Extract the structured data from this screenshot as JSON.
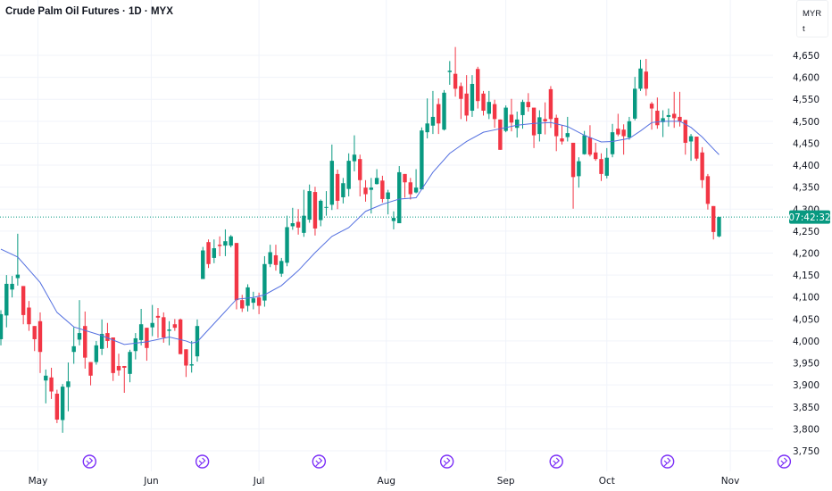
{
  "header": {
    "title": "Crude Palm Oil Futures · 1D · MYX"
  },
  "currency_box": {
    "currency": "MYR",
    "unit": "t"
  },
  "countdown": "07:42:32",
  "colors": {
    "up": "#089981",
    "down": "#F23645",
    "ma": "#5470e0",
    "grid": "#f0f3fa",
    "countdown_bg": "#089981"
  },
  "chart_data": {
    "type": "candlestick",
    "title": "Crude Palm Oil Futures · 1D · MYX",
    "ylim": [
      3730,
      4690
    ],
    "y_ticks": [
      {
        "v": 4650,
        "label": "4,650"
      },
      {
        "v": 4600,
        "label": "4,600"
      },
      {
        "v": 4550,
        "label": "4,550"
      },
      {
        "v": 4500,
        "label": "4,500"
      },
      {
        "v": 4450,
        "label": "4,450"
      },
      {
        "v": 4400,
        "label": "4,400"
      },
      {
        "v": 4350,
        "label": "4,350"
      },
      {
        "v": 4300,
        "label": "4,300"
      },
      {
        "v": 4250,
        "label": "4,250"
      },
      {
        "v": 4200,
        "label": "4,200"
      },
      {
        "v": 4150,
        "label": "4,150"
      },
      {
        "v": 4100,
        "label": "4,100"
      },
      {
        "v": 4050,
        "label": "4,050"
      },
      {
        "v": 4000,
        "label": "4,000"
      },
      {
        "v": 3950,
        "label": "3,950"
      },
      {
        "v": 3900,
        "label": "3,900"
      },
      {
        "v": 3850,
        "label": "3,850"
      },
      {
        "v": 3800,
        "label": "3,800"
      },
      {
        "v": 3750,
        "label": "3,750"
      }
    ],
    "x_ticks": [
      {
        "i": 6.6,
        "label": "May"
      },
      {
        "i": 26.8,
        "label": "Jun"
      },
      {
        "i": 46,
        "label": "Jul"
      },
      {
        "i": 68.7,
        "label": "Aug"
      },
      {
        "i": 90,
        "label": "Sep"
      },
      {
        "i": 108,
        "label": "Oct"
      },
      {
        "i": 130,
        "label": "Nov"
      }
    ],
    "events": [
      15.8,
      35.9,
      56.7,
      79.5,
      99,
      118.8,
      139.6
    ],
    "last_price": 4282,
    "ohlc": [
      [
        4004,
        4070,
        3990,
        4061
      ],
      [
        4058,
        4150,
        4031,
        4130
      ],
      [
        4117,
        4148,
        4099,
        4130
      ],
      [
        4143,
        4244,
        4126,
        4151
      ],
      [
        4125,
        4125,
        4038,
        4059
      ],
      [
        4076,
        4091,
        4023,
        4038
      ],
      [
        4034,
        4034,
        3977,
        4004
      ],
      [
        4045,
        4065,
        3927,
        3975
      ],
      [
        3910,
        3935,
        3858,
        3921
      ],
      [
        3917,
        3939,
        3868,
        3885
      ],
      [
        3880,
        3889,
        3813,
        3821
      ],
      [
        3820,
        3902,
        3791,
        3896
      ],
      [
        3895,
        3951,
        3840,
        3908
      ],
      [
        3975,
        4031,
        3948,
        3988
      ],
      [
        4003,
        4093,
        3990,
        4018
      ],
      [
        4034,
        4067,
        3937,
        3962
      ],
      [
        3952,
        3952,
        3899,
        3921
      ],
      [
        3952,
        4000,
        3946,
        3990
      ],
      [
        3982,
        4049,
        3968,
        4016
      ],
      [
        4018,
        4041,
        3984,
        4000
      ],
      [
        4008,
        4008,
        3909,
        3927
      ],
      [
        3943,
        3971,
        3921,
        3933
      ],
      [
        3943,
        3943,
        3882,
        3939
      ],
      [
        3925,
        3980,
        3906,
        3975
      ],
      [
        3977,
        4018,
        3958,
        4006
      ],
      [
        4002,
        4073,
        3990,
        4038
      ],
      [
        4030,
        4030,
        3955,
        3984
      ],
      [
        4031,
        4082,
        4011,
        4041
      ],
      [
        4057,
        4075,
        4007,
        4053
      ],
      [
        4054,
        4065,
        3996,
        4008
      ],
      [
        4023,
        4045,
        3990,
        4026
      ],
      [
        4038,
        4050,
        4023,
        4030
      ],
      [
        4049,
        4051,
        3970,
        3970
      ],
      [
        3981,
        3981,
        3918,
        3944
      ],
      [
        3944,
        4000,
        3928,
        3947
      ],
      [
        3965,
        4049,
        3953,
        4034
      ],
      [
        4141,
        4214,
        4141,
        4206
      ],
      [
        4225,
        4231,
        4166,
        4175
      ],
      [
        4189,
        4231,
        4177,
        4211
      ],
      [
        4219,
        4238,
        4193,
        4216
      ],
      [
        4217,
        4254,
        4193,
        4227
      ],
      [
        4217,
        4241,
        4213,
        4238
      ],
      [
        4223,
        4223,
        4072,
        4093
      ],
      [
        4093,
        4105,
        4066,
        4074
      ],
      [
        4080,
        4129,
        4067,
        4122
      ],
      [
        4087,
        4112,
        4072,
        4097
      ],
      [
        4099,
        4110,
        4061,
        4080
      ],
      [
        4092,
        4193,
        4078,
        4175
      ],
      [
        4175,
        4219,
        4168,
        4202
      ],
      [
        4195,
        4219,
        4160,
        4173
      ],
      [
        4153,
        4189,
        4146,
        4182
      ],
      [
        4178,
        4285,
        4170,
        4259
      ],
      [
        4261,
        4303,
        4253,
        4268
      ],
      [
        4271,
        4300,
        4242,
        4258
      ],
      [
        4246,
        4344,
        4237,
        4285
      ],
      [
        4276,
        4356,
        4269,
        4341
      ],
      [
        4339,
        4351,
        4240,
        4256
      ],
      [
        4275,
        4322,
        4261,
        4319
      ],
      [
        4303,
        4341,
        4285,
        4305
      ],
      [
        4310,
        4447,
        4298,
        4410
      ],
      [
        4380,
        4390,
        4300,
        4319
      ],
      [
        4327,
        4371,
        4313,
        4359
      ],
      [
        4346,
        4427,
        4329,
        4410
      ],
      [
        4409,
        4468,
        4386,
        4424
      ],
      [
        4414,
        4424,
        4329,
        4366
      ],
      [
        4349,
        4366,
        4317,
        4334
      ],
      [
        4344,
        4371,
        4290,
        4349
      ],
      [
        4357,
        4391,
        4356,
        4371
      ],
      [
        4365,
        4376,
        4315,
        4323
      ],
      [
        4323,
        4344,
        4288,
        4338
      ],
      [
        4273,
        4295,
        4254,
        4280
      ],
      [
        4268,
        4398,
        4268,
        4384
      ],
      [
        4380,
        4380,
        4326,
        4361
      ],
      [
        4361,
        4371,
        4322,
        4334
      ],
      [
        4338,
        4391,
        4336,
        4349
      ],
      [
        4345,
        4486,
        4345,
        4479
      ],
      [
        4475,
        4552,
        4461,
        4495
      ],
      [
        4490,
        4569,
        4471,
        4510
      ],
      [
        4539,
        4552,
        4471,
        4495
      ],
      [
        4481,
        4571,
        4479,
        4565
      ],
      [
        4612,
        4637,
        4583,
        4615
      ],
      [
        4608,
        4669,
        4556,
        4574
      ],
      [
        4580,
        4588,
        4505,
        4551
      ],
      [
        4563,
        4605,
        4500,
        4513
      ],
      [
        4524,
        4605,
        4510,
        4585
      ],
      [
        4619,
        4624,
        4529,
        4546
      ],
      [
        4563,
        4569,
        4513,
        4524
      ],
      [
        4517,
        4569,
        4505,
        4544
      ],
      [
        4539,
        4549,
        4485,
        4505
      ],
      [
        4504,
        4504,
        4435,
        4435
      ],
      [
        4478,
        4536,
        4475,
        4531
      ],
      [
        4515,
        4551,
        4477,
        4497
      ],
      [
        4485,
        4522,
        4463,
        4504
      ],
      [
        4514,
        4549,
        4483,
        4544
      ],
      [
        4544,
        4564,
        4522,
        4532
      ],
      [
        4531,
        4531,
        4439,
        4468
      ],
      [
        4471,
        4525,
        4454,
        4509
      ],
      [
        4505,
        4543,
        4470,
        4500
      ],
      [
        4573,
        4580,
        4485,
        4505
      ],
      [
        4508,
        4515,
        4432,
        4466
      ],
      [
        4461,
        4491,
        4447,
        4454
      ],
      [
        4464,
        4510,
        4454,
        4473
      ],
      [
        4451,
        4451,
        4301,
        4373
      ],
      [
        4375,
        4418,
        4349,
        4409
      ],
      [
        4425,
        4478,
        4424,
        4468
      ],
      [
        4463,
        4491,
        4420,
        4424
      ],
      [
        4429,
        4451,
        4410,
        4414
      ],
      [
        4414,
        4427,
        4364,
        4380
      ],
      [
        4376,
        4439,
        4370,
        4417
      ],
      [
        4425,
        4494,
        4418,
        4475
      ],
      [
        4483,
        4517,
        4466,
        4470
      ],
      [
        4481,
        4493,
        4424,
        4466
      ],
      [
        4463,
        4510,
        4458,
        4500
      ],
      [
        4506,
        4601,
        4502,
        4574
      ],
      [
        4574,
        4640,
        4569,
        4620
      ],
      [
        4613,
        4642,
        4558,
        4574
      ],
      [
        4540,
        4544,
        4481,
        4529
      ],
      [
        4524,
        4554,
        4483,
        4491
      ],
      [
        4498,
        4525,
        4464,
        4507
      ],
      [
        4510,
        4529,
        4488,
        4514
      ],
      [
        4517,
        4567,
        4485,
        4507
      ],
      [
        4510,
        4567,
        4488,
        4500
      ],
      [
        4503,
        4503,
        4424,
        4451
      ],
      [
        4454,
        4471,
        4410,
        4466
      ],
      [
        4465,
        4465,
        4410,
        4415
      ],
      [
        4429,
        4441,
        4348,
        4366
      ],
      [
        4375,
        4380,
        4299,
        4312
      ],
      [
        4307,
        4307,
        4231,
        4248
      ],
      [
        4238,
        4283,
        4236,
        4282
      ]
    ],
    "ma": [
      [
        0,
        4209
      ],
      [
        3,
        4191
      ],
      [
        7,
        4133
      ],
      [
        10,
        4065
      ],
      [
        13,
        4032
      ],
      [
        18,
        4012
      ],
      [
        22,
        3992
      ],
      [
        26,
        3998
      ],
      [
        30,
        4009
      ],
      [
        33,
        4000
      ],
      [
        34,
        3995
      ],
      [
        35,
        3998
      ],
      [
        36,
        4012
      ],
      [
        42,
        4095
      ],
      [
        45,
        4099
      ],
      [
        47,
        4105
      ],
      [
        50,
        4126
      ],
      [
        53,
        4160
      ],
      [
        56,
        4201
      ],
      [
        59,
        4238
      ],
      [
        62,
        4258
      ],
      [
        65,
        4295
      ],
      [
        68,
        4311
      ],
      [
        71,
        4323
      ],
      [
        74,
        4326
      ],
      [
        77,
        4384
      ],
      [
        80,
        4427
      ],
      [
        83,
        4454
      ],
      [
        86,
        4475
      ],
      [
        89,
        4483
      ],
      [
        92,
        4491
      ],
      [
        95,
        4495
      ],
      [
        98,
        4497
      ],
      [
        101,
        4488
      ],
      [
        104,
        4468
      ],
      [
        107,
        4453
      ],
      [
        109,
        4454
      ],
      [
        112,
        4461
      ],
      [
        114,
        4478
      ],
      [
        116,
        4497
      ],
      [
        118,
        4500
      ],
      [
        121,
        4500
      ],
      [
        123,
        4486
      ],
      [
        125,
        4464
      ],
      [
        127,
        4437
      ],
      [
        128,
        4424
      ]
    ]
  }
}
